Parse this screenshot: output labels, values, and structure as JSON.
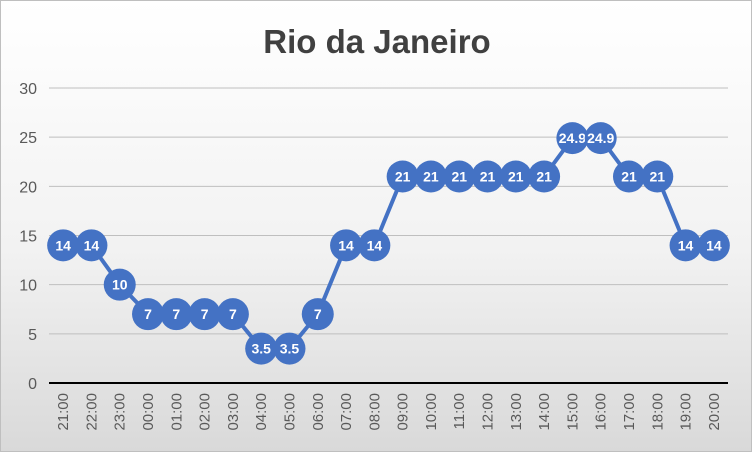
{
  "chart_data": {
    "type": "line",
    "title": "Rio da Janeiro",
    "xlabel": "",
    "ylabel": "",
    "ylim": [
      0,
      30
    ],
    "yticks": [
      0,
      5,
      10,
      15,
      20,
      25,
      30
    ],
    "grid": true,
    "legend": "none",
    "categories": [
      "21:00",
      "22:00",
      "23:00",
      "00:00",
      "01:00",
      "02:00",
      "03:00",
      "04:00",
      "05:00",
      "06:00",
      "07:00",
      "08:00",
      "09:00",
      "10:00",
      "11:00",
      "12:00",
      "13:00",
      "14:00",
      "15:00",
      "16:00",
      "17:00",
      "18:00",
      "19:00",
      "20:00"
    ],
    "series": [
      {
        "values": [
          14,
          14,
          10,
          7,
          7,
          7,
          7,
          3.5,
          3.5,
          7,
          14,
          14,
          21,
          21,
          21,
          21,
          21,
          21,
          24.9,
          24.9,
          21,
          21,
          14,
          14
        ],
        "color": "#4472c4",
        "data_labels": true
      }
    ],
    "colors": {
      "series": "#4472c4",
      "gridline": "#bfbfbf",
      "axis": "#000000",
      "title": "#404040",
      "tick_text": "#595959"
    }
  }
}
